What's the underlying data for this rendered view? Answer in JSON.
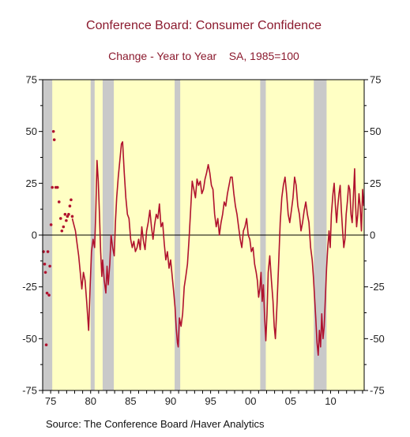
{
  "chart_data": {
    "type": "line",
    "title": "Conference Board: Consumer Confidence",
    "subtitle": "Change - Year to Year    SA, 1985=100",
    "source": "Source:  The Conference Board /Haver Analytics",
    "x_range": [
      1974.0,
      2014.2
    ],
    "ylim": [
      -75,
      75
    ],
    "y_ticks": [
      75,
      50,
      25,
      0,
      -25,
      -50,
      -75
    ],
    "y_tick_labels": [
      "75",
      "50",
      "25",
      "0",
      "-25",
      "-50",
      "-75"
    ],
    "x_ticks": [
      1975,
      1980,
      1985,
      1990,
      1995,
      2000,
      2005,
      2010
    ],
    "x_tick_labels": [
      "75",
      "80",
      "85",
      "90",
      "95",
      "00",
      "05",
      "10"
    ],
    "grid": false,
    "zero_line": true,
    "recessions": [
      [
        1974.0,
        1975.2
      ],
      [
        1980.0,
        1980.5
      ],
      [
        1981.5,
        1982.9
      ],
      [
        1990.5,
        1991.2
      ],
      [
        2001.2,
        2001.9
      ],
      [
        2007.9,
        2009.5
      ]
    ],
    "series": [
      {
        "points": [
          [
            1974.1,
            -8
          ],
          [
            1974.25,
            -14
          ],
          [
            1974.35,
            -18
          ],
          [
            1974.45,
            -53
          ],
          [
            1974.55,
            -28
          ],
          [
            1974.65,
            -8
          ],
          [
            1974.8,
            -29
          ],
          [
            1974.9,
            -15
          ],
          [
            1975.05,
            5
          ],
          [
            1975.2,
            23
          ],
          [
            1975.35,
            50
          ],
          [
            1975.45,
            46
          ],
          [
            1975.65,
            23
          ],
          [
            1975.85,
            23
          ],
          [
            1976.05,
            16
          ],
          [
            1976.25,
            8
          ],
          [
            1976.4,
            2
          ],
          [
            1976.6,
            4
          ],
          [
            1976.8,
            10
          ],
          [
            1976.95,
            7
          ],
          [
            1977.1,
            9
          ],
          [
            1977.25,
            10
          ],
          [
            1977.4,
            14
          ],
          [
            1977.55,
            17
          ],
          [
            1977.7,
            9
          ]
        ],
        "line": [
          [
            1977.7,
            8
          ],
          [
            1977.9,
            5
          ],
          [
            1978.1,
            2
          ],
          [
            1978.3,
            -4
          ],
          [
            1978.5,
            -10
          ],
          [
            1978.7,
            -18
          ],
          [
            1978.9,
            -26
          ],
          [
            1979.1,
            -18
          ],
          [
            1979.3,
            -22
          ],
          [
            1979.5,
            -32
          ],
          [
            1979.75,
            -46
          ],
          [
            1979.95,
            -24
          ],
          [
            1980.1,
            -8
          ],
          [
            1980.3,
            -2
          ],
          [
            1980.5,
            -6
          ],
          [
            1980.65,
            12
          ],
          [
            1980.8,
            36
          ],
          [
            1980.95,
            26
          ],
          [
            1981.1,
            10
          ],
          [
            1981.25,
            -8
          ],
          [
            1981.4,
            -20
          ],
          [
            1981.5,
            -12
          ],
          [
            1981.7,
            -22
          ],
          [
            1981.9,
            -28
          ],
          [
            1982.05,
            -15
          ],
          [
            1982.2,
            -24
          ],
          [
            1982.4,
            -14
          ],
          [
            1982.55,
            0
          ],
          [
            1982.75,
            -6
          ],
          [
            1982.95,
            -10
          ],
          [
            1983.1,
            6
          ],
          [
            1983.25,
            18
          ],
          [
            1983.45,
            28
          ],
          [
            1983.65,
            36
          ],
          [
            1983.85,
            44
          ],
          [
            1984.0,
            45
          ],
          [
            1984.2,
            30
          ],
          [
            1984.4,
            18
          ],
          [
            1984.6,
            10
          ],
          [
            1984.8,
            8
          ],
          [
            1985.0,
            -2
          ],
          [
            1985.2,
            -6
          ],
          [
            1985.4,
            -3
          ],
          [
            1985.6,
            -8
          ],
          [
            1985.8,
            -6
          ],
          [
            1986.0,
            -2
          ],
          [
            1986.2,
            -7
          ],
          [
            1986.4,
            4
          ],
          [
            1986.6,
            -3
          ],
          [
            1986.8,
            -7
          ],
          [
            1987.0,
            2
          ],
          [
            1987.2,
            6
          ],
          [
            1987.4,
            12
          ],
          [
            1987.6,
            4
          ],
          [
            1987.8,
            -2
          ],
          [
            1988.0,
            5
          ],
          [
            1988.2,
            10
          ],
          [
            1988.4,
            8
          ],
          [
            1988.6,
            15
          ],
          [
            1988.8,
            4
          ],
          [
            1989.0,
            6
          ],
          [
            1989.2,
            -4
          ],
          [
            1989.4,
            -12
          ],
          [
            1989.6,
            -8
          ],
          [
            1989.8,
            -16
          ],
          [
            1990.0,
            -12
          ],
          [
            1990.2,
            -20
          ],
          [
            1990.4,
            -28
          ],
          [
            1990.55,
            -35
          ],
          [
            1990.7,
            -45
          ],
          [
            1990.85,
            -52
          ],
          [
            1990.95,
            -54
          ],
          [
            1991.1,
            -40
          ],
          [
            1991.3,
            -44
          ],
          [
            1991.5,
            -38
          ],
          [
            1991.7,
            -25
          ],
          [
            1991.9,
            -20
          ],
          [
            1992.1,
            -14
          ],
          [
            1992.3,
            -2
          ],
          [
            1992.5,
            12
          ],
          [
            1992.7,
            26
          ],
          [
            1992.9,
            22
          ],
          [
            1993.1,
            18
          ],
          [
            1993.3,
            27
          ],
          [
            1993.5,
            24
          ],
          [
            1993.7,
            26
          ],
          [
            1993.9,
            20
          ],
          [
            1994.1,
            22
          ],
          [
            1994.3,
            27
          ],
          [
            1994.5,
            30
          ],
          [
            1994.7,
            34
          ],
          [
            1994.9,
            30
          ],
          [
            1995.1,
            24
          ],
          [
            1995.3,
            22
          ],
          [
            1995.5,
            10
          ],
          [
            1995.7,
            4
          ],
          [
            1995.9,
            8
          ],
          [
            1996.1,
            0
          ],
          [
            1996.3,
            6
          ],
          [
            1996.5,
            10
          ],
          [
            1996.7,
            16
          ],
          [
            1996.9,
            14
          ],
          [
            1997.1,
            20
          ],
          [
            1997.3,
            24
          ],
          [
            1997.5,
            28
          ],
          [
            1997.7,
            28
          ],
          [
            1997.9,
            20
          ],
          [
            1998.1,
            14
          ],
          [
            1998.3,
            10
          ],
          [
            1998.5,
            4
          ],
          [
            1998.7,
            -2
          ],
          [
            1998.9,
            -6
          ],
          [
            1999.1,
            2
          ],
          [
            1999.3,
            4
          ],
          [
            1999.5,
            8
          ],
          [
            1999.7,
            0
          ],
          [
            1999.9,
            -2
          ],
          [
            2000.1,
            -8
          ],
          [
            2000.3,
            -6
          ],
          [
            2000.5,
            -14
          ],
          [
            2000.7,
            -18
          ],
          [
            2000.85,
            -22
          ],
          [
            2001.0,
            -30
          ],
          [
            2001.15,
            -26
          ],
          [
            2001.3,
            -18
          ],
          [
            2001.45,
            -32
          ],
          [
            2001.6,
            -24
          ],
          [
            2001.75,
            -40
          ],
          [
            2001.9,
            -51
          ],
          [
            2002.05,
            -38
          ],
          [
            2002.2,
            -18
          ],
          [
            2002.4,
            -10
          ],
          [
            2002.6,
            -22
          ],
          [
            2002.8,
            -32
          ],
          [
            2002.95,
            -44
          ],
          [
            2003.1,
            -50
          ],
          [
            2003.3,
            -34
          ],
          [
            2003.5,
            -14
          ],
          [
            2003.7,
            6
          ],
          [
            2003.9,
            18
          ],
          [
            2004.1,
            24
          ],
          [
            2004.3,
            28
          ],
          [
            2004.5,
            20
          ],
          [
            2004.7,
            10
          ],
          [
            2004.9,
            6
          ],
          [
            2005.1,
            12
          ],
          [
            2005.3,
            18
          ],
          [
            2005.5,
            28
          ],
          [
            2005.7,
            24
          ],
          [
            2005.9,
            14
          ],
          [
            2006.1,
            10
          ],
          [
            2006.3,
            2
          ],
          [
            2006.5,
            6
          ],
          [
            2006.7,
            12
          ],
          [
            2006.9,
            16
          ],
          [
            2007.1,
            10
          ],
          [
            2007.3,
            6
          ],
          [
            2007.5,
            -6
          ],
          [
            2007.7,
            -12
          ],
          [
            2007.85,
            -20
          ],
          [
            2008.0,
            -30
          ],
          [
            2008.15,
            -40
          ],
          [
            2008.3,
            -52
          ],
          [
            2008.45,
            -58
          ],
          [
            2008.6,
            -46
          ],
          [
            2008.75,
            -54
          ],
          [
            2008.9,
            -38
          ],
          [
            2009.05,
            -50
          ],
          [
            2009.2,
            -44
          ],
          [
            2009.35,
            -30
          ],
          [
            2009.5,
            -16
          ],
          [
            2009.65,
            -6
          ],
          [
            2009.8,
            2
          ],
          [
            2009.95,
            -6
          ],
          [
            2010.1,
            10
          ],
          [
            2010.3,
            20
          ],
          [
            2010.45,
            25
          ],
          [
            2010.6,
            14
          ],
          [
            2010.75,
            6
          ],
          [
            2010.9,
            14
          ],
          [
            2011.05,
            20
          ],
          [
            2011.2,
            24
          ],
          [
            2011.35,
            12
          ],
          [
            2011.5,
            2
          ],
          [
            2011.65,
            -6
          ],
          [
            2011.8,
            -2
          ],
          [
            2011.95,
            10
          ],
          [
            2012.1,
            16
          ],
          [
            2012.25,
            24
          ],
          [
            2012.4,
            22
          ],
          [
            2012.55,
            10
          ],
          [
            2012.7,
            6
          ],
          [
            2012.85,
            18
          ],
          [
            2013.0,
            32
          ],
          [
            2013.1,
            16
          ],
          [
            2013.25,
            4
          ],
          [
            2013.4,
            10
          ],
          [
            2013.55,
            20
          ],
          [
            2013.7,
            14
          ],
          [
            2013.85,
            2
          ],
          [
            2014.0,
            22
          ],
          [
            2014.15,
            14
          ]
        ]
      }
    ]
  }
}
